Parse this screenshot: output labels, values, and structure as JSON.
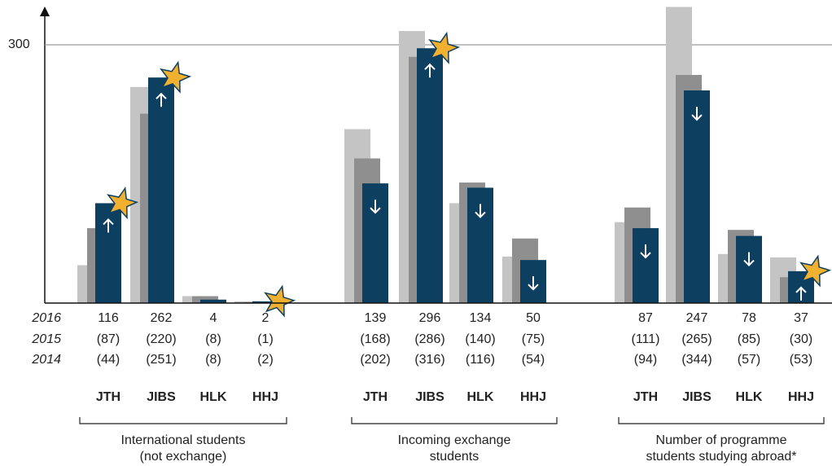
{
  "chart_data": {
    "type": "bar",
    "ylim": [
      0,
      345
    ],
    "yticks": [
      300
    ],
    "grid": true,
    "series": [
      {
        "name": "2016",
        "color": "#0c3f60"
      },
      {
        "name": "2015",
        "color": "#8f8f8f"
      },
      {
        "name": "2014",
        "color": "#c4c4c4"
      }
    ],
    "groups": [
      {
        "label": [
          "International students",
          "(not exchange)"
        ],
        "categories": [
          "JTH",
          "JIBS",
          "HLK",
          "HHJ"
        ],
        "series": [
          {
            "values": [
              116,
              262,
              4,
              2
            ]
          },
          {
            "values": [
              87,
              220,
              8,
              1
            ],
            "value_labels": [
              "(87)",
              "(220)",
              "(8)",
              "(1)"
            ]
          },
          {
            "values": [
              44,
              251,
              8,
              2
            ],
            "value_labels": [
              "(44)",
              "(251)",
              "(8)",
              "(2)"
            ]
          }
        ]
      },
      {
        "label": [
          "Incoming exchange",
          "students"
        ],
        "categories": [
          "JTH",
          "JIBS",
          "HLK",
          "HHJ"
        ],
        "series": [
          {
            "values": [
              139,
              296,
              134,
              50
            ]
          },
          {
            "values": [
              168,
              286,
              140,
              75
            ],
            "value_labels": [
              "(168)",
              "(286)",
              "(140)",
              "(75)"
            ]
          },
          {
            "values": [
              202,
              316,
              116,
              54
            ],
            "value_labels": [
              "(202)",
              "(316)",
              "(116)",
              "(54)"
            ]
          }
        ]
      },
      {
        "label": [
          "Number of programme",
          "students studying abroad*"
        ],
        "categories": [
          "JTH",
          "JIBS",
          "HLK",
          "HHJ"
        ],
        "series": [
          {
            "values": [
              87,
              247,
              78,
              37
            ]
          },
          {
            "values": [
              111,
              265,
              85,
              30
            ],
            "value_labels": [
              "(111)",
              "(265)",
              "(85)",
              "(30)"
            ]
          },
          {
            "values": [
              94,
              344,
              57,
              53
            ],
            "value_labels": [
              "(94)",
              "(344)",
              "(57)",
              "(53)"
            ]
          }
        ]
      }
    ]
  }
}
